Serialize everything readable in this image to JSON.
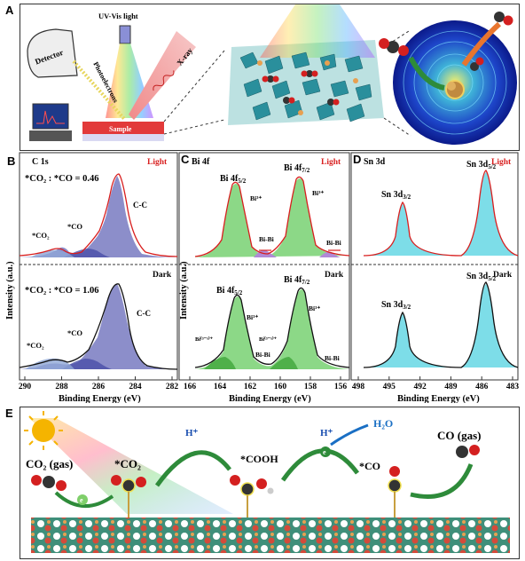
{
  "panel_labels": {
    "A": "A",
    "B": "B",
    "C": "C",
    "D": "D",
    "E": "E"
  },
  "panel_a": {
    "uv_label": "UV-Vis light",
    "detector_label": "Detector",
    "xray_label": "X-ray",
    "photoelectrons_label": "Photoelectrons",
    "sample_label": "Sample"
  },
  "panel_b": {
    "element": "C 1s",
    "light_label": "Light",
    "dark_label": "Dark",
    "ratio_light": "*CO₂ : *CO = 0.46",
    "ratio_dark": "*CO₂ : *CO = 1.06",
    "peak_co2": "*CO₂",
    "peak_co": "*CO",
    "peak_cc": "C-C",
    "x_ticks": [
      "290",
      "288",
      "286",
      "284",
      "282"
    ],
    "xlabel": "Binding Energy (eV)",
    "ylabel": "Intensity (a.u.)"
  },
  "panel_c": {
    "element": "Bi 4f",
    "light_label": "Light",
    "dark_label": "Dark",
    "bi52": "Bi 4f",
    "bi52_sub": "5/2",
    "bi72": "Bi 4f",
    "bi72_sub": "7/2",
    "bi3": "Bi³⁺",
    "bibi": "Bi-Bi",
    "bi3x": "Bi⁽³⁻ˣ⁾⁺",
    "x_ticks": [
      "166",
      "164",
      "162",
      "160",
      "158",
      "156"
    ],
    "xlabel": "Binding Energy (eV)",
    "ylabel": "Intensity (a.u.)"
  },
  "panel_d": {
    "element": "Sn 3d",
    "light_label": "Light",
    "dark_label": "Dark",
    "sn32": "Sn 3d",
    "sn32_sub": "3/2",
    "sn52": "Sn 3d",
    "sn52_sub": "5/2",
    "x_ticks": [
      "498",
      "495",
      "492",
      "489",
      "486",
      "483"
    ],
    "xlabel": "Binding Energy (eV)"
  },
  "panel_e": {
    "co2_gas": "CO₂ (gas)",
    "co2_ads": "*CO₂",
    "cooh": "*COOH",
    "co_ads": "*CO",
    "co_gas": "CO (gas)",
    "h2o": "H₂O",
    "hplus": "H⁺",
    "electron": "e"
  },
  "colors": {
    "light_red": "#d81e1e",
    "cc_fill": "#7f82c4",
    "bi_fill": "#7fd47a",
    "sn_fill": "#6fd9e6",
    "arrow_green": "#2e8b3a",
    "h2o_blue": "#1a6fc4"
  }
}
